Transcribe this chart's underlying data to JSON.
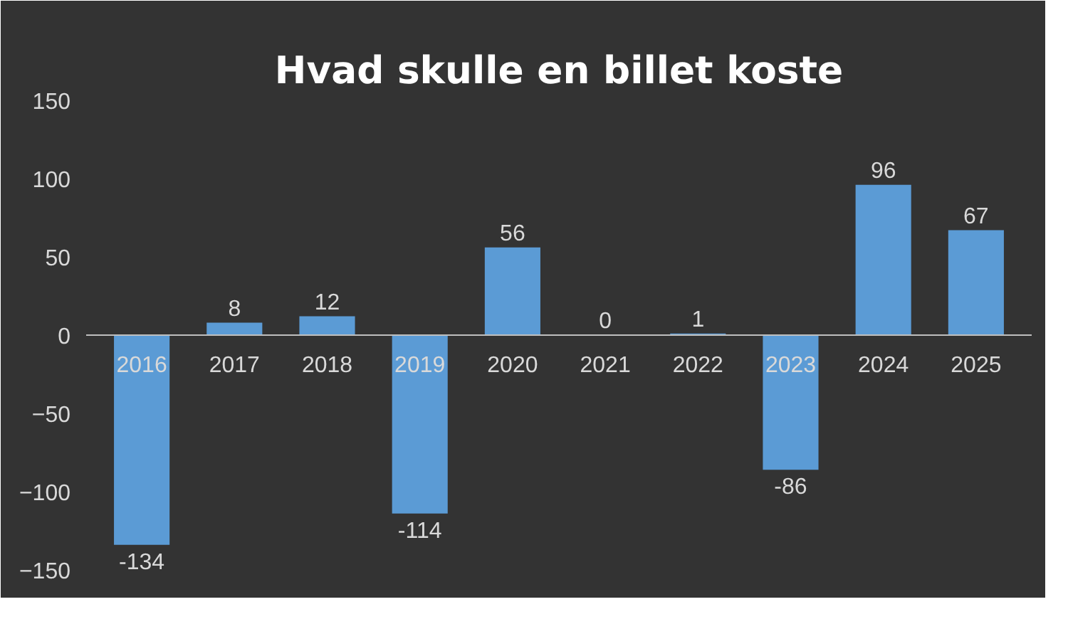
{
  "chart_data": {
    "type": "bar",
    "title": "Hvad skulle en billet koste",
    "categories": [
      "2016",
      "2017",
      "2018",
      "2019",
      "2020",
      "2021",
      "2022",
      "2023",
      "2024",
      "2025"
    ],
    "values": [
      -134,
      8,
      12,
      -114,
      56,
      0,
      1,
      -86,
      96,
      67
    ],
    "color": "#5b9bd5",
    "ylim": [
      -150,
      150
    ],
    "yticks": [
      -150,
      -100,
      -50,
      0,
      50,
      100,
      150
    ],
    "grid": false,
    "data_labels": true
  }
}
